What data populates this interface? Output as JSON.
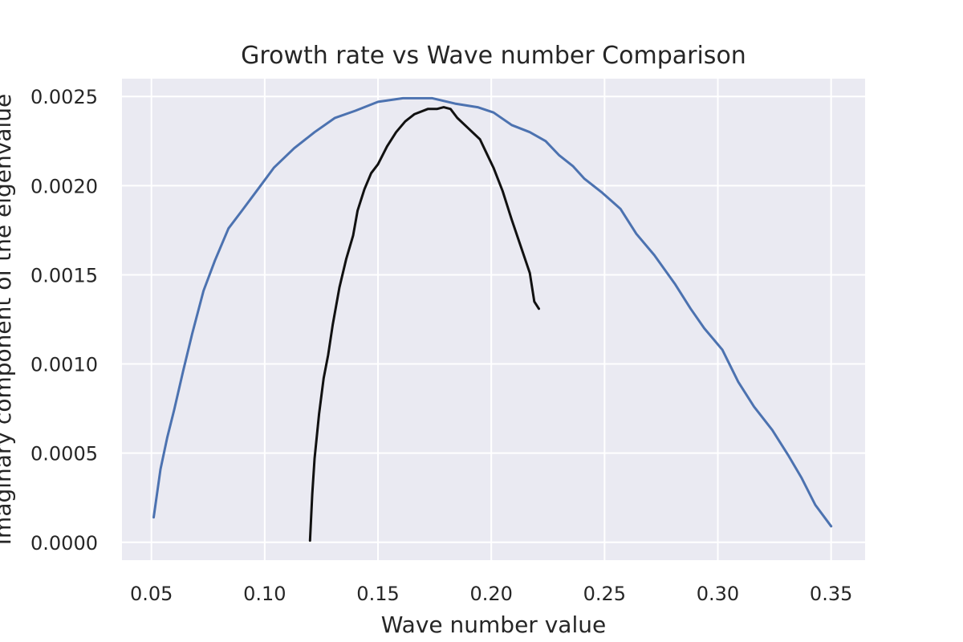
{
  "chart_data": {
    "type": "line",
    "title": "Growth rate vs Wave number Comparison",
    "xlabel": "Wave number value",
    "ylabel": "Imaginary component of the eigenvalue",
    "xlim": [
      0.037,
      0.365
    ],
    "ylim": [
      -0.0001,
      0.0026
    ],
    "xticks": [
      "0.05",
      "0.10",
      "0.15",
      "0.20",
      "0.25",
      "0.30",
      "0.35"
    ],
    "yticks": [
      "0.0000",
      "0.0005",
      "0.0010",
      "0.0015",
      "0.0020",
      "0.0025"
    ],
    "grid": true,
    "background": "#EAEAF2",
    "series": [
      {
        "color": "#4C72B0",
        "x": [
          0.051,
          0.054,
          0.057,
          0.06,
          0.064,
          0.068,
          0.073,
          0.078,
          0.084,
          0.09,
          0.097,
          0.104,
          0.113,
          0.122,
          0.131,
          0.14,
          0.15,
          0.161,
          0.166,
          0.174,
          0.184,
          0.194,
          0.201,
          0.209,
          0.217,
          0.224,
          0.23,
          0.236,
          0.241,
          0.249,
          0.257,
          0.264,
          0.272,
          0.281,
          0.288,
          0.294,
          0.302,
          0.309,
          0.316,
          0.324,
          0.331,
          0.337,
          0.343,
          0.35
        ],
        "y": [
          0.00014,
          0.00041,
          0.00059,
          0.00074,
          0.00096,
          0.00117,
          0.00141,
          0.00158,
          0.00176,
          0.00186,
          0.00198,
          0.0021,
          0.00221,
          0.0023,
          0.00238,
          0.00242,
          0.00247,
          0.00249,
          0.00249,
          0.00249,
          0.00246,
          0.00244,
          0.00241,
          0.00234,
          0.0023,
          0.00225,
          0.00217,
          0.00211,
          0.00204,
          0.00196,
          0.00187,
          0.00173,
          0.00161,
          0.00145,
          0.00131,
          0.0012,
          0.00108,
          0.0009,
          0.00076,
          0.00063,
          0.00049,
          0.00036,
          0.00021,
          9e-05
        ]
      },
      {
        "color": "#111111",
        "x": [
          0.12,
          0.121,
          0.122,
          0.124,
          0.126,
          0.128,
          0.13,
          0.133,
          0.136,
          0.139,
          0.141,
          0.144,
          0.147,
          0.15,
          0.154,
          0.158,
          0.162,
          0.166,
          0.172,
          0.176,
          0.179,
          0.182,
          0.185,
          0.19,
          0.195,
          0.198,
          0.201,
          0.205,
          0.209,
          0.213,
          0.217,
          0.219,
          0.221
        ],
        "y": [
          1e-05,
          0.00027,
          0.00047,
          0.00072,
          0.00092,
          0.00105,
          0.00122,
          0.00143,
          0.00159,
          0.00172,
          0.00186,
          0.00198,
          0.00207,
          0.00212,
          0.00222,
          0.0023,
          0.00236,
          0.0024,
          0.00243,
          0.00243,
          0.00244,
          0.00243,
          0.00238,
          0.00232,
          0.00226,
          0.00218,
          0.0021,
          0.00197,
          0.00181,
          0.00166,
          0.00151,
          0.00135,
          0.00131
        ]
      }
    ]
  }
}
